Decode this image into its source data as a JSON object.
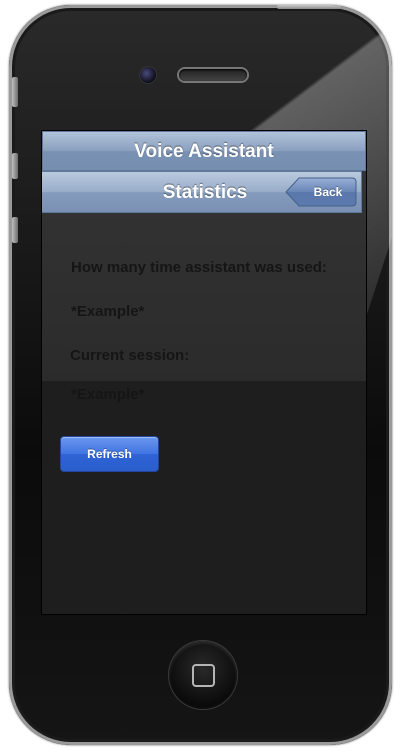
{
  "app": {
    "title": "Voice Assistant"
  },
  "nav": {
    "title": "Statistics",
    "back_label": "Back"
  },
  "stats": {
    "usage_label": "How many time assistant was used:",
    "usage_value": "*Example*",
    "session_label": "Current session:",
    "session_value": "*Example*"
  },
  "actions": {
    "refresh_label": "Refresh"
  },
  "colors": {
    "nav_bar": "#7d95b7",
    "back_button": "#4f6fa5",
    "refresh_button": "#3f74e2",
    "screen_background": "#1e1e1e"
  }
}
